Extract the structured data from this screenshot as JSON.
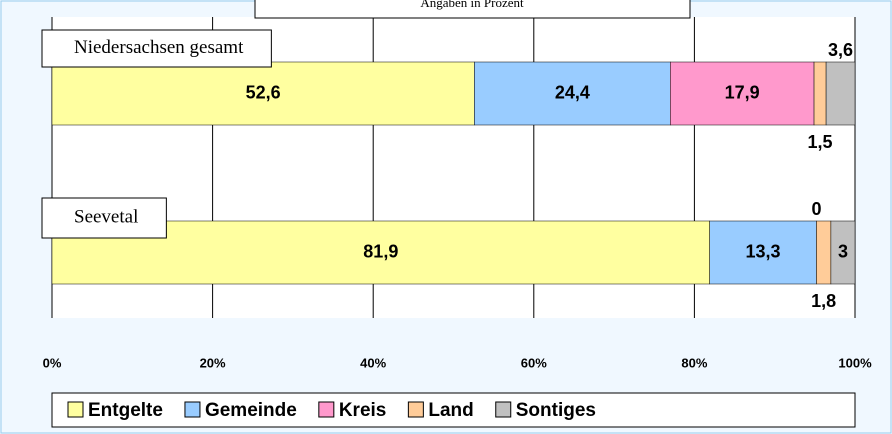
{
  "chart_data": {
    "type": "bar",
    "orientation": "horizontal",
    "stacked": true,
    "subtitle": "Angaben in Prozent",
    "categories": [
      "Niedersachsen gesamt",
      "Seevetal"
    ],
    "series": [
      {
        "name": "Entgelte",
        "color": "#ffffa0",
        "values": [
          52.6,
          81.9
        ],
        "value_labels": [
          "52,6",
          "81,9"
        ]
      },
      {
        "name": "Gemeinde",
        "color": "#99ccff",
        "values": [
          24.4,
          13.3
        ],
        "value_labels": [
          "24,4",
          "13,3"
        ]
      },
      {
        "name": "Kreis",
        "color": "#ff99cc",
        "values": [
          17.9,
          0
        ],
        "value_labels": [
          "17,9",
          "0"
        ]
      },
      {
        "name": "Land",
        "color": "#ffcc99",
        "values": [
          1.5,
          1.8
        ],
        "value_labels": [
          "1,5",
          "1,8"
        ]
      },
      {
        "name": "Sontiges",
        "color": "#c0c0c0",
        "values": [
          3.6,
          3
        ],
        "value_labels": [
          "3,6",
          "3"
        ]
      }
    ],
    "xlim": [
      0,
      100
    ],
    "xticks": [
      {
        "value": 0,
        "label": "0%"
      },
      {
        "value": 20,
        "label": "20%"
      },
      {
        "value": 40,
        "label": "40%"
      },
      {
        "value": 60,
        "label": "60%"
      },
      {
        "value": 80,
        "label": "80%"
      },
      {
        "value": 100,
        "label": "100%"
      }
    ],
    "grid": true,
    "legend": "bottom"
  }
}
